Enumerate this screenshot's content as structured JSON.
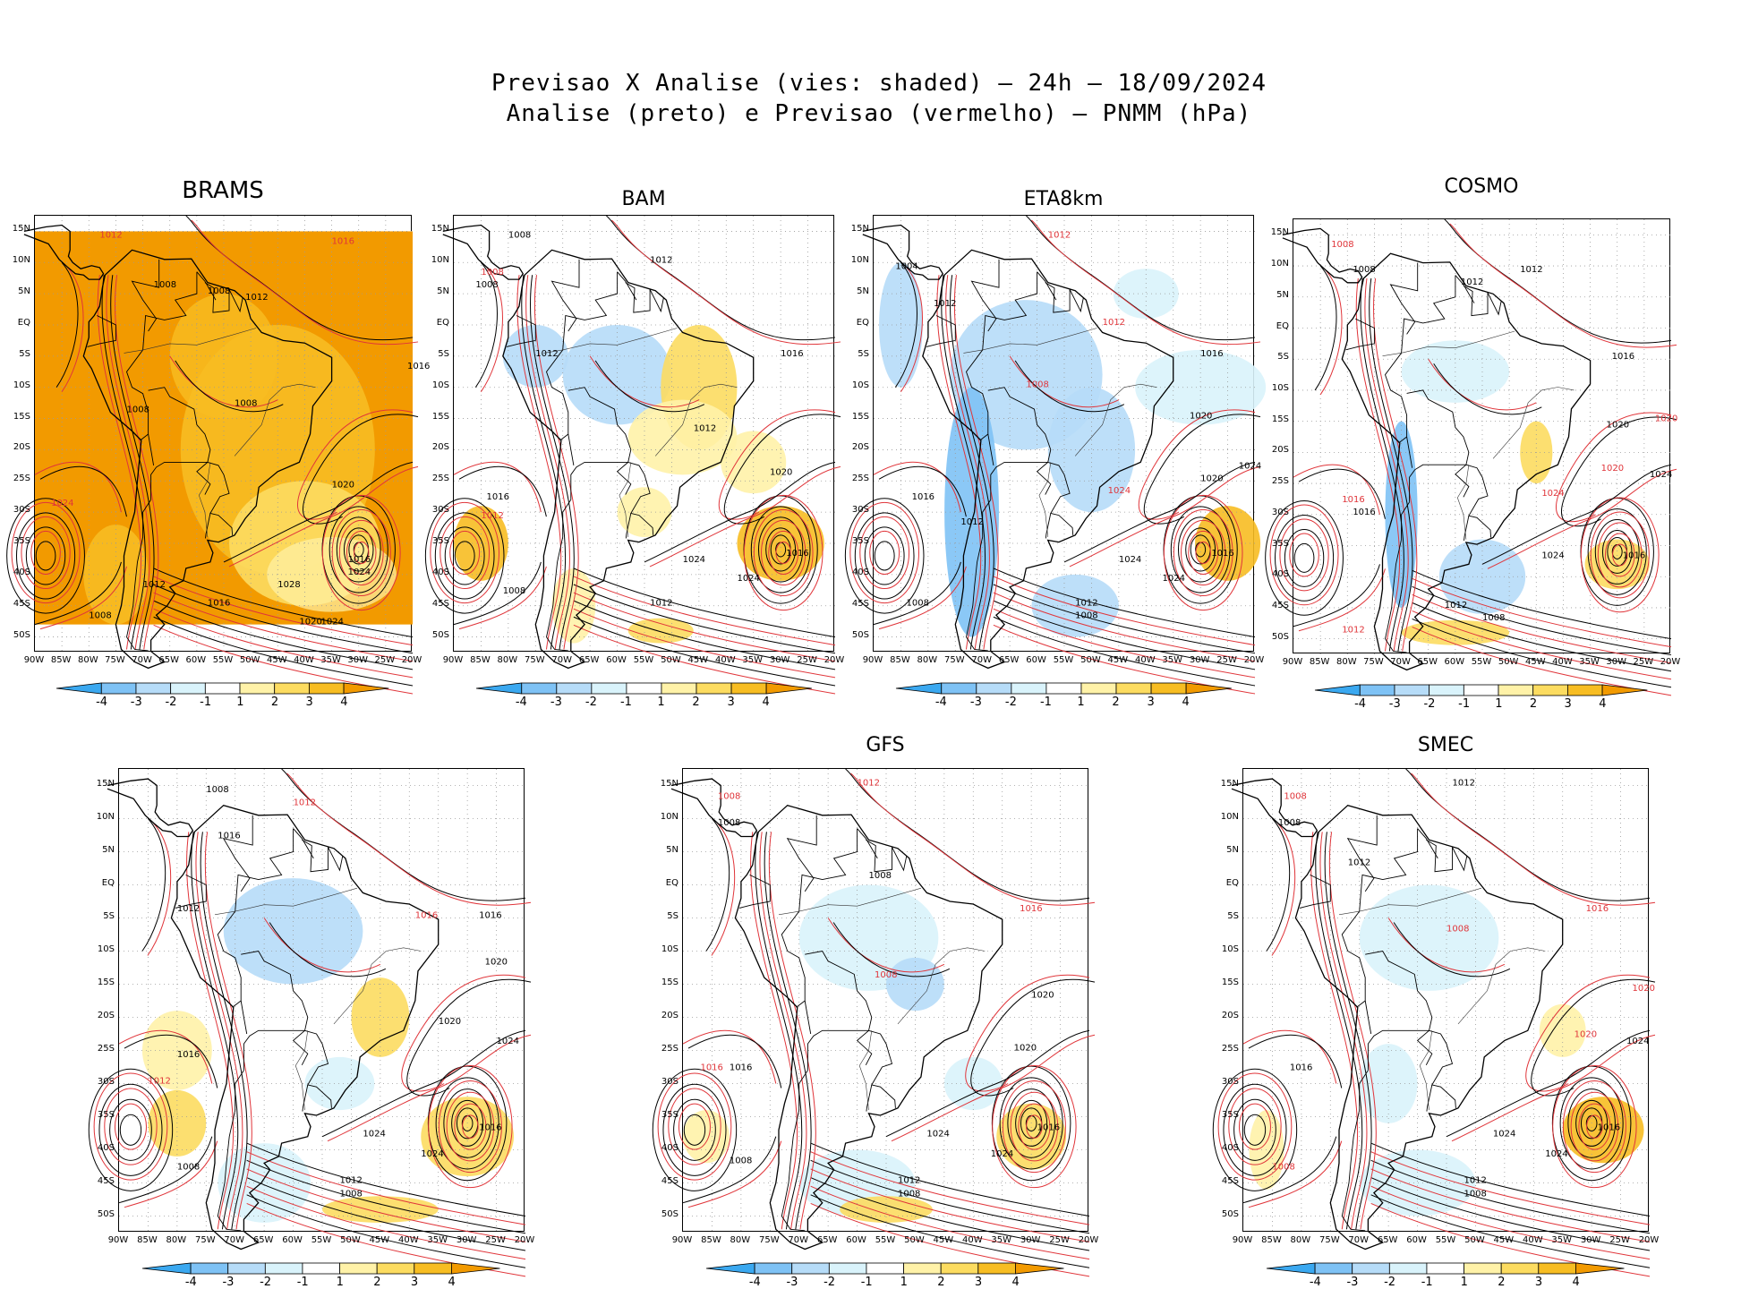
{
  "header": {
    "line1": "Previsao X Analise (vies: shaded) – 24h – 18/09/2024",
    "line2": "Analise (preto) e Previsao (vermelho) – PNMM (hPa)"
  },
  "axes": {
    "lat_labels": [
      "15N",
      "10N",
      "5N",
      "EQ",
      "5S",
      "10S",
      "15S",
      "20S",
      "25S",
      "30S",
      "35S",
      "40S",
      "45S",
      "50S"
    ],
    "lon_labels": [
      "90W",
      "85W",
      "80W",
      "75W",
      "70W",
      "65W",
      "60W",
      "55W",
      "50W",
      "45W",
      "40W",
      "35W",
      "30W",
      "25W",
      "20W"
    ]
  },
  "colorbar": {
    "labels": [
      "-4",
      "-3",
      "-2",
      "-1",
      "1",
      "2",
      "3",
      "4"
    ],
    "colors": [
      "#3aa8f0",
      "#7ec2f5",
      "#b6dcf8",
      "#d9f3fb",
      "#ffffff",
      "#fff2a8",
      "#fcdc60",
      "#f7bd22",
      "#f29a00"
    ]
  },
  "colors": {
    "analysis_isobar": "#000000",
    "forecast_isobar": "#e0353a",
    "coast": "#000000"
  },
  "panels": [
    {
      "id": "brams",
      "name": "BRAMS",
      "labels": [
        {
          "t": "1012",
          "c": "r",
          "lon": -78,
          "lat": 14
        },
        {
          "t": "1016",
          "c": "r",
          "lon": -35,
          "lat": 13
        },
        {
          "t": "1008",
          "c": "k",
          "lon": -68,
          "lat": 6
        },
        {
          "t": "1008",
          "c": "k",
          "lon": -58,
          "lat": 5
        },
        {
          "t": "1012",
          "c": "k",
          "lon": -51,
          "lat": 4
        },
        {
          "t": "1016",
          "c": "k",
          "lon": -21,
          "lat": -7
        },
        {
          "t": "1008",
          "c": "k",
          "lon": -73,
          "lat": -14
        },
        {
          "t": "1008",
          "c": "k",
          "lon": -53,
          "lat": -13
        },
        {
          "t": "1020",
          "c": "k",
          "lon": -35,
          "lat": -26
        },
        {
          "t": "1024",
          "c": "r",
          "lon": -87,
          "lat": -29
        },
        {
          "t": "1008",
          "c": "k",
          "lon": -80,
          "lat": -47
        },
        {
          "t": "1012",
          "c": "k",
          "lon": -70,
          "lat": -42
        },
        {
          "t": "1016",
          "c": "k",
          "lon": -58,
          "lat": -45
        },
        {
          "t": "1028",
          "c": "k",
          "lon": -45,
          "lat": -42
        },
        {
          "t": "1016",
          "c": "k",
          "lon": -32,
          "lat": -38
        },
        {
          "t": "1024",
          "c": "k",
          "lon": -32,
          "lat": -40
        },
        {
          "t": "1020",
          "c": "k",
          "lon": -41,
          "lat": -48
        },
        {
          "t": "1024",
          "c": "k",
          "lon": -37,
          "lat": -48
        }
      ]
    },
    {
      "id": "bam",
      "name": "BAM",
      "labels": [
        {
          "t": "1008",
          "c": "k",
          "lon": -80,
          "lat": 14
        },
        {
          "t": "1012",
          "c": "k",
          "lon": -54,
          "lat": 10
        },
        {
          "t": "1008",
          "c": "k",
          "lon": -86,
          "lat": 6
        },
        {
          "t": "1008",
          "c": "r",
          "lon": -85,
          "lat": 8
        },
        {
          "t": "1012",
          "c": "k",
          "lon": -75,
          "lat": -5
        },
        {
          "t": "1016",
          "c": "k",
          "lon": -30,
          "lat": -5
        },
        {
          "t": "1012",
          "c": "k",
          "lon": -46,
          "lat": -17
        },
        {
          "t": "1020",
          "c": "k",
          "lon": -32,
          "lat": -24
        },
        {
          "t": "1016",
          "c": "k",
          "lon": -84,
          "lat": -28
        },
        {
          "t": "1012",
          "c": "r",
          "lon": -85,
          "lat": -31
        },
        {
          "t": "1024",
          "c": "k",
          "lon": -48,
          "lat": -38
        },
        {
          "t": "1016",
          "c": "k",
          "lon": -29,
          "lat": -37
        },
        {
          "t": "1008",
          "c": "k",
          "lon": -81,
          "lat": -43
        },
        {
          "t": "1012",
          "c": "k",
          "lon": -54,
          "lat": -45
        },
        {
          "t": "1024",
          "c": "k",
          "lon": -38,
          "lat": -41
        }
      ]
    },
    {
      "id": "eta",
      "name": "ETA8km",
      "labels": [
        {
          "t": "1012",
          "c": "r",
          "lon": -58,
          "lat": 14
        },
        {
          "t": "1004",
          "c": "k",
          "lon": -86,
          "lat": 9
        },
        {
          "t": "1012",
          "c": "k",
          "lon": -79,
          "lat": 3
        },
        {
          "t": "1012",
          "c": "r",
          "lon": -48,
          "lat": 0
        },
        {
          "t": "1016",
          "c": "k",
          "lon": -30,
          "lat": -5
        },
        {
          "t": "1008",
          "c": "r",
          "lon": -62,
          "lat": -10
        },
        {
          "t": "1020",
          "c": "k",
          "lon": -32,
          "lat": -15
        },
        {
          "t": "1024",
          "c": "k",
          "lon": -23,
          "lat": -23
        },
        {
          "t": "1020",
          "c": "k",
          "lon": -30,
          "lat": -25
        },
        {
          "t": "1024",
          "c": "r",
          "lon": -47,
          "lat": -27
        },
        {
          "t": "1016",
          "c": "k",
          "lon": -83,
          "lat": -28
        },
        {
          "t": "1012",
          "c": "k",
          "lon": -74,
          "lat": -32
        },
        {
          "t": "1016",
          "c": "k",
          "lon": -28,
          "lat": -37
        },
        {
          "t": "1024",
          "c": "k",
          "lon": -45,
          "lat": -38
        },
        {
          "t": "1008",
          "c": "k",
          "lon": -84,
          "lat": -45
        },
        {
          "t": "1012",
          "c": "k",
          "lon": -53,
          "lat": -45
        },
        {
          "t": "1008",
          "c": "k",
          "lon": -53,
          "lat": -47
        },
        {
          "t": "1024",
          "c": "k",
          "lon": -37,
          "lat": -41
        }
      ]
    },
    {
      "id": "cosmo",
      "name": "COSMO",
      "labels": [
        {
          "t": "1008",
          "c": "r",
          "lon": -83,
          "lat": 13
        },
        {
          "t": "1008",
          "c": "k",
          "lon": -79,
          "lat": 9
        },
        {
          "t": "1012",
          "c": "k",
          "lon": -59,
          "lat": 7
        },
        {
          "t": "1012",
          "c": "k",
          "lon": -48,
          "lat": 9
        },
        {
          "t": "1016",
          "c": "k",
          "lon": -31,
          "lat": -5
        },
        {
          "t": "1020",
          "c": "k",
          "lon": -32,
          "lat": -16
        },
        {
          "t": "1020",
          "c": "r",
          "lon": -23,
          "lat": -15
        },
        {
          "t": "1024",
          "c": "k",
          "lon": -24,
          "lat": -24
        },
        {
          "t": "1020",
          "c": "r",
          "lon": -33,
          "lat": -23
        },
        {
          "t": "1024",
          "c": "r",
          "lon": -44,
          "lat": -27
        },
        {
          "t": "1016",
          "c": "r",
          "lon": -81,
          "lat": -28
        },
        {
          "t": "1016",
          "c": "k",
          "lon": -79,
          "lat": -30
        },
        {
          "t": "1016",
          "c": "k",
          "lon": -29,
          "lat": -37
        },
        {
          "t": "1024",
          "c": "k",
          "lon": -44,
          "lat": -37
        },
        {
          "t": "1012",
          "c": "k",
          "lon": -62,
          "lat": -45
        },
        {
          "t": "1008",
          "c": "k",
          "lon": -55,
          "lat": -47
        },
        {
          "t": "1012",
          "c": "r",
          "lon": -81,
          "lat": -49
        }
      ]
    },
    {
      "id": "p5",
      "name": "",
      "labels": [
        {
          "t": "1008",
          "c": "k",
          "lon": -75,
          "lat": 14
        },
        {
          "t": "1012",
          "c": "r",
          "lon": -60,
          "lat": 12
        },
        {
          "t": "1016",
          "c": "k",
          "lon": -73,
          "lat": 7
        },
        {
          "t": "1012",
          "c": "k",
          "lon": -80,
          "lat": -4
        },
        {
          "t": "1016",
          "c": "r",
          "lon": -39,
          "lat": -5
        },
        {
          "t": "1016",
          "c": "k",
          "lon": -28,
          "lat": -5
        },
        {
          "t": "1020",
          "c": "k",
          "lon": -27,
          "lat": -12
        },
        {
          "t": "1020",
          "c": "k",
          "lon": -35,
          "lat": -21
        },
        {
          "t": "1024",
          "c": "k",
          "lon": -25,
          "lat": -24
        },
        {
          "t": "1016",
          "c": "k",
          "lon": -80,
          "lat": -26
        },
        {
          "t": "1012",
          "c": "r",
          "lon": -85,
          "lat": -30
        },
        {
          "t": "1016",
          "c": "k",
          "lon": -28,
          "lat": -37
        },
        {
          "t": "1024",
          "c": "k",
          "lon": -48,
          "lat": -38
        },
        {
          "t": "1008",
          "c": "k",
          "lon": -80,
          "lat": -43
        },
        {
          "t": "1012",
          "c": "k",
          "lon": -52,
          "lat": -45
        },
        {
          "t": "1008",
          "c": "k",
          "lon": -52,
          "lat": -47
        },
        {
          "t": "1024",
          "c": "k",
          "lon": -38,
          "lat": -41
        }
      ]
    },
    {
      "id": "gfs",
      "name": "GFS",
      "labels": [
        {
          "t": "1012",
          "c": "r",
          "lon": -60,
          "lat": 15
        },
        {
          "t": "1008",
          "c": "r",
          "lon": -84,
          "lat": 13
        },
        {
          "t": "1008",
          "c": "k",
          "lon": -84,
          "lat": 9
        },
        {
          "t": "1008",
          "c": "k",
          "lon": -58,
          "lat": 1
        },
        {
          "t": "1016",
          "c": "r",
          "lon": -32,
          "lat": -4
        },
        {
          "t": "1008",
          "c": "r",
          "lon": -57,
          "lat": -14
        },
        {
          "t": "1020",
          "c": "k",
          "lon": -30,
          "lat": -17
        },
        {
          "t": "1020",
          "c": "k",
          "lon": -33,
          "lat": -25
        },
        {
          "t": "1016",
          "c": "r",
          "lon": -87,
          "lat": -28
        },
        {
          "t": "1016",
          "c": "k",
          "lon": -82,
          "lat": -28
        },
        {
          "t": "1016",
          "c": "k",
          "lon": -29,
          "lat": -37
        },
        {
          "t": "1024",
          "c": "k",
          "lon": -48,
          "lat": -38
        },
        {
          "t": "1008",
          "c": "k",
          "lon": -82,
          "lat": -42
        },
        {
          "t": "1012",
          "c": "k",
          "lon": -53,
          "lat": -45
        },
        {
          "t": "1008",
          "c": "k",
          "lon": -53,
          "lat": -47
        },
        {
          "t": "1024",
          "c": "k",
          "lon": -37,
          "lat": -41
        }
      ]
    },
    {
      "id": "smec",
      "name": "SMEC",
      "labels": [
        {
          "t": "1012",
          "c": "k",
          "lon": -54,
          "lat": 15
        },
        {
          "t": "1008",
          "c": "r",
          "lon": -83,
          "lat": 13
        },
        {
          "t": "1008",
          "c": "k",
          "lon": -84,
          "lat": 9
        },
        {
          "t": "1012",
          "c": "k",
          "lon": -72,
          "lat": 3
        },
        {
          "t": "1016",
          "c": "r",
          "lon": -31,
          "lat": -4
        },
        {
          "t": "1008",
          "c": "r",
          "lon": -55,
          "lat": -7
        },
        {
          "t": "1020",
          "c": "r",
          "lon": -23,
          "lat": -16
        },
        {
          "t": "1024",
          "c": "k",
          "lon": -24,
          "lat": -24
        },
        {
          "t": "1020",
          "c": "r",
          "lon": -33,
          "lat": -23
        },
        {
          "t": "1016",
          "c": "k",
          "lon": -82,
          "lat": -28
        },
        {
          "t": "1016",
          "c": "k",
          "lon": -29,
          "lat": -37
        },
        {
          "t": "1024",
          "c": "k",
          "lon": -47,
          "lat": -38
        },
        {
          "t": "1008",
          "c": "r",
          "lon": -85,
          "lat": -43
        },
        {
          "t": "1012",
          "c": "k",
          "lon": -52,
          "lat": -45
        },
        {
          "t": "1008",
          "c": "k",
          "lon": -52,
          "lat": -47
        },
        {
          "t": "1024",
          "c": "k",
          "lon": -38,
          "lat": -41
        }
      ]
    }
  ]
}
